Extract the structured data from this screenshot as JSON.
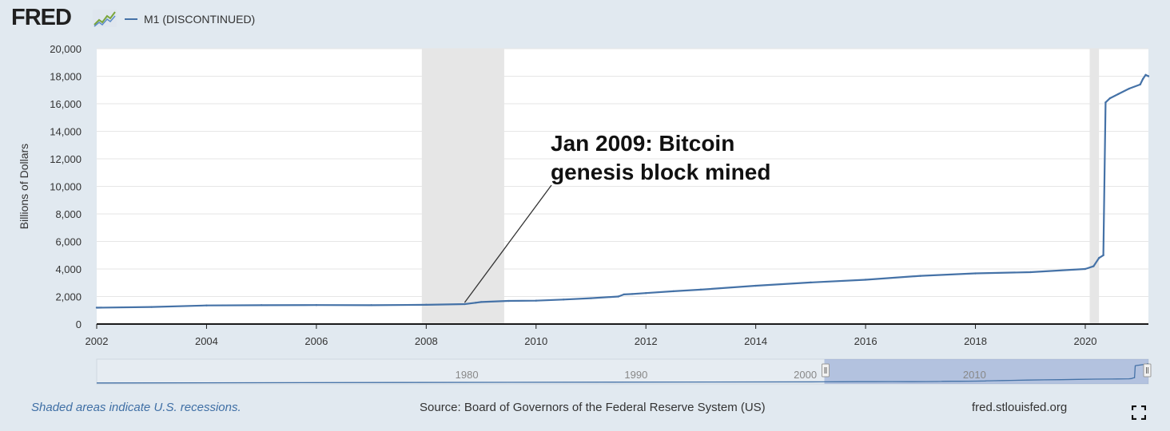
{
  "header": {
    "logo_text": "FRED",
    "series_legend": "M1 (DISCONTINUED)"
  },
  "chart_data": {
    "type": "line",
    "title": "M1 (DISCONTINUED)",
    "ylabel": "Billions of Dollars",
    "xlabel": "",
    "xlim": [
      2002.0,
      2021.15
    ],
    "ylim": [
      0,
      20000
    ],
    "y_ticks": [
      0,
      2000,
      4000,
      6000,
      8000,
      10000,
      12000,
      14000,
      16000,
      18000,
      20000
    ],
    "y_tick_labels": [
      "0",
      "2,000",
      "4,000",
      "6,000",
      "8,000",
      "10,000",
      "12,000",
      "14,000",
      "16,000",
      "18,000",
      "20,000"
    ],
    "x_ticks": [
      2002,
      2004,
      2006,
      2008,
      2010,
      2012,
      2014,
      2016,
      2018,
      2020
    ],
    "x_tick_labels": [
      "2002",
      "2004",
      "2006",
      "2008",
      "2010",
      "2012",
      "2014",
      "2016",
      "2018",
      "2020"
    ],
    "recessions": [
      [
        2007.92,
        2009.42
      ],
      [
        2020.08,
        2020.25
      ]
    ],
    "series": [
      {
        "name": "M1 (DISCONTINUED)",
        "color": "#4572a7",
        "x": [
          2002.0,
          2003.0,
          2004.0,
          2005.0,
          2006.0,
          2007.0,
          2008.0,
          2008.7,
          2008.9,
          2009.0,
          2009.5,
          2010.0,
          2010.5,
          2011.0,
          2011.5,
          2011.6,
          2011.75,
          2012.0,
          2012.5,
          2013.0,
          2014.0,
          2015.0,
          2016.0,
          2017.0,
          2018.0,
          2019.0,
          2020.0,
          2020.15,
          2020.25,
          2020.33,
          2020.37,
          2020.45,
          2020.6,
          2020.8,
          2021.0,
          2021.05,
          2021.1,
          2021.15
        ],
        "values": [
          1190,
          1240,
          1350,
          1370,
          1380,
          1370,
          1400,
          1450,
          1550,
          1600,
          1680,
          1700,
          1780,
          1880,
          2000,
          2150,
          2180,
          2250,
          2380,
          2500,
          2780,
          3020,
          3220,
          3500,
          3680,
          3770,
          4000,
          4200,
          4800,
          5000,
          16100,
          16400,
          16700,
          17100,
          17400,
          17800,
          18100,
          18000
        ]
      }
    ],
    "annotation": {
      "lines": [
        "Jan 2009: Bitcoin",
        "genesis block mined"
      ],
      "point_x": 2008.7,
      "point_y": 1450
    },
    "navigator": {
      "labels": [
        "1980",
        "1990",
        "2000",
        "2010"
      ],
      "range": [
        1959.0,
        2021.15
      ],
      "selected": [
        2002.0,
        2021.15
      ]
    },
    "grid": true,
    "legend": "top-left"
  },
  "footer": {
    "note": "Shaded areas indicate U.S. recessions.",
    "source": "Source: Board of Governors of the Federal Reserve System (US)",
    "link": "fred.stlouisfed.org"
  }
}
